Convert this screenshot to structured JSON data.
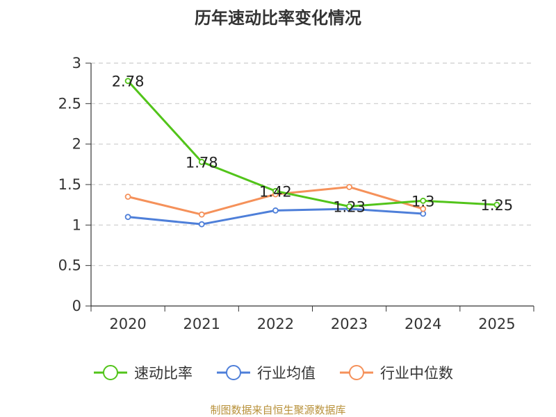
{
  "chart_data": {
    "type": "line",
    "title": "历年速动比率变化情况",
    "categories": [
      "2020",
      "2021",
      "2022",
      "2023",
      "2024",
      "2025"
    ],
    "ylim": [
      0,
      3
    ],
    "yticks": [
      "0",
      "0.5",
      "1",
      "1.5",
      "2",
      "2.5",
      "3"
    ],
    "grid": true,
    "series": [
      {
        "name": "速动比率",
        "color": "#52c41a",
        "values": [
          2.78,
          1.78,
          1.42,
          1.23,
          1.3,
          1.25
        ],
        "labels": [
          "2.78",
          "1.78",
          "1.42",
          "1.23",
          "1.3",
          "1.25"
        ]
      },
      {
        "name": "行业均值",
        "color": "#4e7fd9",
        "values": [
          1.1,
          1.01,
          1.18,
          1.2,
          1.14,
          null
        ]
      },
      {
        "name": "行业中位数",
        "color": "#f5915a",
        "values": [
          1.35,
          1.13,
          1.38,
          1.47,
          1.2,
          null
        ]
      }
    ],
    "legend_position": "bottom"
  },
  "source_note": "制图数据来自恒生聚源数据库"
}
